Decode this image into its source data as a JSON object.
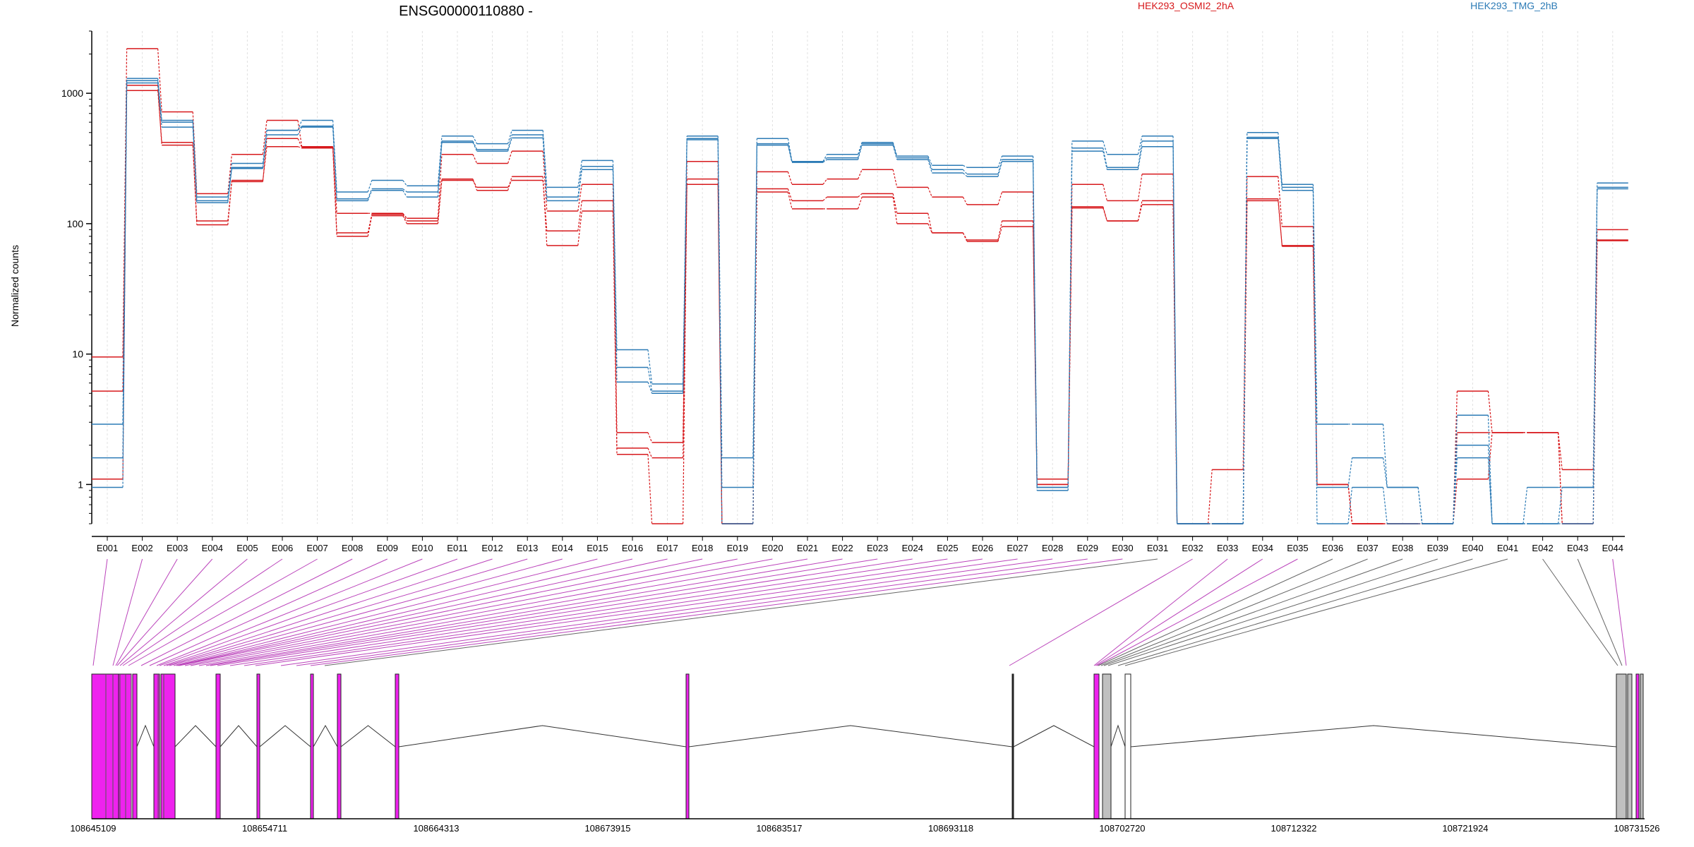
{
  "chart_data": {
    "type": "line",
    "title": "ENSG00000110880 -",
    "ylabel": "Normalized counts",
    "y_scale": "log",
    "ylim": [
      0.5,
      3000
    ],
    "y_ticks": [
      1,
      10,
      100,
      1000
    ],
    "y_tick_labels": [
      "1",
      "10",
      "100",
      "1000"
    ],
    "grid": "vertical dotted",
    "legend_position": "top-right",
    "legend": [
      {
        "label": "HEK293_OSMI2_2hA",
        "color": "#d7191c"
      },
      {
        "label": "HEK293_TMG_2hB",
        "color": "#2c7bb6"
      }
    ],
    "categories": [
      "E001",
      "E002",
      "E003",
      "E004",
      "E005",
      "E006",
      "E007",
      "E008",
      "E009",
      "E010",
      "E011",
      "E012",
      "E013",
      "E014",
      "E015",
      "E016",
      "E017",
      "E018",
      "E019",
      "E020",
      "E021",
      "E022",
      "E023",
      "E024",
      "E025",
      "E026",
      "E027",
      "E028",
      "E029",
      "E030",
      "E031",
      "E032",
      "E033",
      "E034",
      "E035",
      "E036",
      "E037",
      "E038",
      "E039",
      "E040",
      "E041",
      "E042",
      "E043",
      "E044"
    ],
    "series": [
      {
        "group": "red",
        "color": "#d7191c",
        "values": [
          9.5,
          2200,
          720,
          170,
          340,
          620,
          390,
          120,
          120,
          110,
          340,
          290,
          360,
          125,
          200,
          2.5,
          2.1,
          300,
          0.5,
          250,
          200,
          220,
          260,
          190,
          160,
          140,
          175,
          1.1,
          200,
          150,
          240,
          0.5,
          1.3,
          230,
          95,
          1.0,
          0.5,
          0.5,
          0.5,
          5.2,
          2.5,
          2.5,
          1.3,
          90
        ]
      },
      {
        "group": "red",
        "color": "#d7191c",
        "values": [
          5.2,
          1050,
          420,
          98,
          215,
          390,
          380,
          80,
          115,
          100,
          220,
          180,
          230,
          68,
          125,
          1.9,
          1.6,
          200,
          0.5,
          185,
          150,
          160,
          170,
          120,
          85,
          75,
          105,
          1.0,
          135,
          105,
          150,
          0.5,
          0.5,
          150,
          68,
          1.0,
          0.5,
          0.5,
          0.5,
          2.5,
          2.5,
          2.5,
          0.5,
          75
        ]
      },
      {
        "group": "red",
        "color": "#d7191c",
        "values": [
          1.1,
          1150,
          400,
          105,
          210,
          450,
          385,
          85,
          118,
          105,
          215,
          190,
          215,
          88,
          150,
          1.7,
          0.5,
          220,
          0.5,
          175,
          130,
          130,
          160,
          100,
          85,
          73,
          95,
          1.0,
          132,
          105,
          140,
          0.5,
          0.5,
          155,
          67,
          1.0,
          0.5,
          0.5,
          0.5,
          1.1,
          2.5,
          2.5,
          0.5,
          74
        ]
      },
      {
        "group": "blue",
        "color": "#2c7bb6",
        "values": [
          2.9,
          1300,
          620,
          160,
          290,
          520,
          620,
          175,
          215,
          195,
          470,
          410,
          520,
          190,
          305,
          10.8,
          5.9,
          470,
          1.6,
          450,
          300,
          340,
          420,
          330,
          280,
          270,
          330,
          0.95,
          430,
          340,
          470,
          0.5,
          0.5,
          500,
          200,
          2.9,
          2.9,
          0.95,
          0.5,
          3.4,
          0.5,
          0.95,
          0.95,
          205
        ]
      },
      {
        "group": "blue",
        "color": "#2c7bb6",
        "values": [
          1.6,
          1250,
          550,
          150,
          270,
          520,
          560,
          155,
          185,
          175,
          430,
          370,
          480,
          160,
          275,
          7.9,
          5.2,
          440,
          0.95,
          410,
          300,
          320,
          410,
          320,
          260,
          240,
          310,
          0.95,
          380,
          270,
          430,
          0.5,
          0.5,
          460,
          190,
          0.95,
          1.6,
          0.95,
          0.5,
          1.6,
          0.5,
          0.5,
          0.95,
          190
        ]
      },
      {
        "group": "blue",
        "color": "#2c7bb6",
        "values": [
          0.95,
          1200,
          600,
          145,
          265,
          480,
          550,
          150,
          180,
          160,
          420,
          360,
          455,
          150,
          260,
          6.1,
          5.0,
          450,
          0.5,
          400,
          295,
          310,
          400,
          310,
          245,
          230,
          300,
          0.9,
          360,
          260,
          390,
          0.5,
          0.5,
          450,
          180,
          0.5,
          0.95,
          0.5,
          0.5,
          2.0,
          0.5,
          0.5,
          0.5,
          185
        ]
      }
    ],
    "gene_model": {
      "coordinate_labels": [
        "108645109",
        "108654711",
        "108664313",
        "108673915",
        "108683517",
        "108693118",
        "108702720",
        "108712322",
        "108721924",
        "108731526"
      ],
      "exon_color": "#ee22ee",
      "noncoding_exon_color": "#c0c0c0",
      "connector_colors": {
        "exon": "#bb44bb",
        "intron_only": "#666666"
      }
    }
  }
}
